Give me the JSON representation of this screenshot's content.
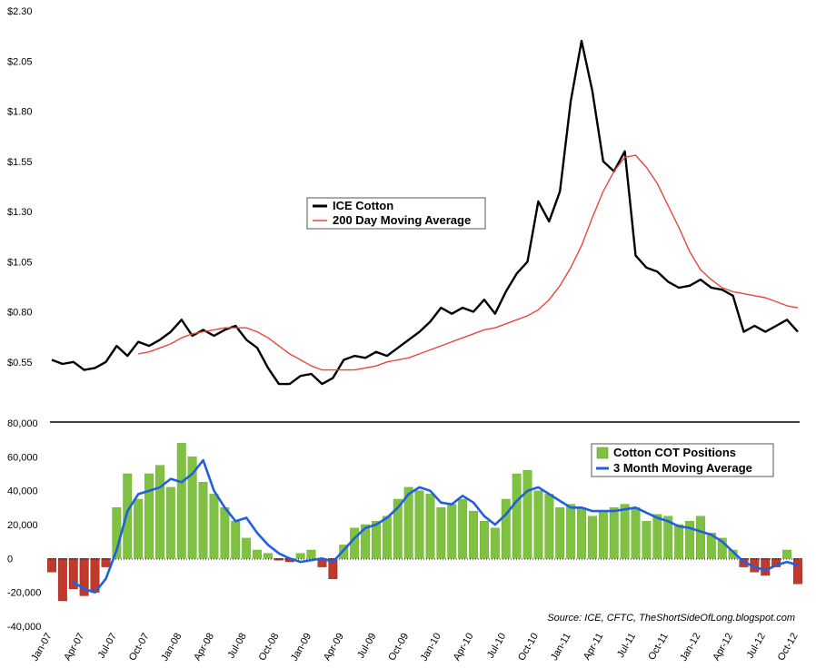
{
  "source": "Source: ICE, CFTC, TheShortSideOfLong.blogspot.com",
  "chart_data": [
    {
      "type": "line",
      "title": "",
      "xlabel": "",
      "ylabel": "",
      "ylim": [
        0.3,
        2.3
      ],
      "yticks": [
        "$0.55",
        "$0.80",
        "$1.05",
        "$1.30",
        "$1.55",
        "$1.80",
        "$2.05",
        "$2.30"
      ],
      "ytick_values": [
        0.55,
        0.8,
        1.05,
        1.3,
        1.55,
        1.8,
        2.05,
        2.3
      ],
      "x": [
        "Jan-07",
        "Feb-07",
        "Mar-07",
        "Apr-07",
        "May-07",
        "Jun-07",
        "Jul-07",
        "Aug-07",
        "Sep-07",
        "Oct-07",
        "Nov-07",
        "Dec-07",
        "Jan-08",
        "Feb-08",
        "Mar-08",
        "Apr-08",
        "May-08",
        "Jun-08",
        "Jul-08",
        "Aug-08",
        "Sep-08",
        "Oct-08",
        "Nov-08",
        "Dec-08",
        "Jan-09",
        "Feb-09",
        "Mar-09",
        "Apr-09",
        "May-09",
        "Jun-09",
        "Jul-09",
        "Aug-09",
        "Sep-09",
        "Oct-09",
        "Nov-09",
        "Dec-09",
        "Jan-10",
        "Feb-10",
        "Mar-10",
        "Apr-10",
        "May-10",
        "Jun-10",
        "Jul-10",
        "Aug-10",
        "Sep-10",
        "Oct-10",
        "Nov-10",
        "Dec-10",
        "Jan-11",
        "Feb-11",
        "Mar-11",
        "Apr-11",
        "May-11",
        "Jun-11",
        "Jul-11",
        "Aug-11",
        "Sep-11",
        "Oct-11",
        "Nov-11",
        "Dec-11",
        "Jan-12",
        "Feb-12",
        "Mar-12",
        "Apr-12",
        "May-12",
        "Jun-12",
        "Jul-12",
        "Aug-12",
        "Sep-12",
        "Oct-12"
      ],
      "legend_position": "center",
      "series": [
        {
          "name": "ICE Cotton",
          "color": "#000000",
          "values": [
            0.56,
            0.54,
            0.55,
            0.51,
            0.52,
            0.55,
            0.63,
            0.58,
            0.65,
            0.63,
            0.66,
            0.7,
            0.76,
            0.68,
            0.71,
            0.68,
            0.71,
            0.73,
            0.66,
            0.62,
            0.52,
            0.44,
            0.44,
            0.48,
            0.49,
            0.44,
            0.47,
            0.56,
            0.58,
            0.57,
            0.6,
            0.58,
            0.62,
            0.66,
            0.7,
            0.75,
            0.82,
            0.79,
            0.82,
            0.8,
            0.86,
            0.79,
            0.9,
            0.99,
            1.05,
            1.35,
            1.25,
            1.4,
            1.85,
            2.15,
            1.9,
            1.55,
            1.5,
            1.6,
            1.08,
            1.02,
            1.0,
            0.95,
            0.92,
            0.93,
            0.96,
            0.92,
            0.91,
            0.88,
            0.7,
            0.73,
            0.7,
            0.73,
            0.76,
            0.7
          ]
        },
        {
          "name": "200 Day Moving Average",
          "color": "#e8463c",
          "values": [
            null,
            null,
            null,
            null,
            null,
            null,
            null,
            null,
            0.59,
            0.6,
            0.62,
            0.64,
            0.67,
            0.69,
            0.7,
            0.71,
            0.72,
            0.72,
            0.72,
            0.7,
            0.67,
            0.63,
            0.59,
            0.56,
            0.53,
            0.51,
            0.51,
            0.51,
            0.51,
            0.52,
            0.53,
            0.55,
            0.56,
            0.57,
            0.59,
            0.61,
            0.63,
            0.65,
            0.67,
            0.69,
            0.71,
            0.72,
            0.74,
            0.76,
            0.78,
            0.81,
            0.86,
            0.93,
            1.02,
            1.13,
            1.27,
            1.4,
            1.5,
            1.57,
            1.58,
            1.52,
            1.44,
            1.33,
            1.22,
            1.1,
            1.01,
            0.96,
            0.92,
            0.9,
            0.89,
            0.88,
            0.87,
            0.85,
            0.83,
            0.82
          ]
        }
      ]
    },
    {
      "type": "bar",
      "title": "",
      "xlabel": "",
      "ylabel": "",
      "ylim": [
        -40000,
        80000
      ],
      "yticks": [
        "-40,000",
        "-20,000",
        "0",
        "20,000",
        "40,000",
        "60,000",
        "80,000"
      ],
      "ytick_values": [
        -40000,
        -20000,
        0,
        20000,
        40000,
        60000,
        80000
      ],
      "categories": [
        "Jan-07",
        "Feb-07",
        "Mar-07",
        "Apr-07",
        "May-07",
        "Jun-07",
        "Jul-07",
        "Aug-07",
        "Sep-07",
        "Oct-07",
        "Nov-07",
        "Dec-07",
        "Jan-08",
        "Feb-08",
        "Mar-08",
        "Apr-08",
        "May-08",
        "Jun-08",
        "Jul-08",
        "Aug-08",
        "Sep-08",
        "Oct-08",
        "Nov-08",
        "Dec-08",
        "Jan-09",
        "Feb-09",
        "Mar-09",
        "Apr-09",
        "May-09",
        "Jun-09",
        "Jul-09",
        "Aug-09",
        "Sep-09",
        "Oct-09",
        "Nov-09",
        "Dec-09",
        "Jan-10",
        "Feb-10",
        "Mar-10",
        "Apr-10",
        "May-10",
        "Jun-10",
        "Jul-10",
        "Aug-10",
        "Sep-10",
        "Oct-10",
        "Nov-10",
        "Dec-10",
        "Jan-11",
        "Feb-11",
        "Mar-11",
        "Apr-11",
        "May-11",
        "Jun-11",
        "Jul-11",
        "Aug-11",
        "Sep-11",
        "Oct-11",
        "Nov-11",
        "Dec-11",
        "Jan-12",
        "Feb-12",
        "Mar-12",
        "Apr-12",
        "May-12",
        "Jun-12",
        "Jul-12",
        "Aug-12",
        "Sep-12",
        "Oct-12"
      ],
      "tick_labels": [
        "Jan-07",
        "Apr-07",
        "Jul-07",
        "Oct-07",
        "Jan-08",
        "Apr-08",
        "Jul-08",
        "Oct-08",
        "Jan-09",
        "Apr-09",
        "Jul-09",
        "Oct-09",
        "Jan-10",
        "Apr-10",
        "Jul-10",
        "Oct-10",
        "Jan-11",
        "Apr-11",
        "Jul-11",
        "Oct-11",
        "Jan-12",
        "Apr-12",
        "Jul-12",
        "Oct-12"
      ],
      "legend_position": "top-right",
      "positive_color": "#6aa329",
      "negative_color": "#c0392b",
      "series": [
        {
          "name": "Cotton COT Positions",
          "color": "#7fc241",
          "values": [
            -8000,
            -25000,
            -18000,
            -22000,
            -20000,
            -5000,
            30000,
            50000,
            35000,
            50000,
            55000,
            42000,
            68000,
            60000,
            45000,
            38000,
            30000,
            22000,
            12000,
            5000,
            3000,
            -1000,
            -2000,
            3000,
            5000,
            -5000,
            -12000,
            8000,
            18000,
            20000,
            22000,
            25000,
            35000,
            42000,
            40000,
            38000,
            30000,
            32000,
            35000,
            28000,
            22000,
            18000,
            35000,
            50000,
            52000,
            40000,
            38000,
            30000,
            32000,
            30000,
            25000,
            28000,
            30000,
            32000,
            30000,
            22000,
            26000,
            25000,
            20000,
            22000,
            25000,
            15000,
            12000,
            5000,
            -5000,
            -8000,
            -10000,
            -5000,
            5000,
            -15000
          ]
        },
        {
          "name": "3 Month Moving Average",
          "color": "#1f5fe0",
          "values": [
            null,
            null,
            -14000,
            -18000,
            -20000,
            -12000,
            5000,
            28000,
            38000,
            40000,
            42000,
            47000,
            45000,
            50000,
            58000,
            40000,
            30000,
            22000,
            24000,
            15000,
            8000,
            3000,
            0,
            -2000,
            -1000,
            0,
            -2000,
            5000,
            12000,
            18000,
            20000,
            24000,
            30000,
            38000,
            42000,
            40000,
            33000,
            32000,
            37000,
            33000,
            25000,
            20000,
            26000,
            34000,
            40000,
            42000,
            38000,
            34000,
            30000,
            30000,
            28000,
            28000,
            28000,
            29000,
            30000,
            27000,
            24000,
            22000,
            19000,
            18000,
            16000,
            14000,
            10000,
            4000,
            -2000,
            -5000,
            -7000,
            -4000,
            -2000,
            -4000
          ]
        }
      ]
    }
  ]
}
